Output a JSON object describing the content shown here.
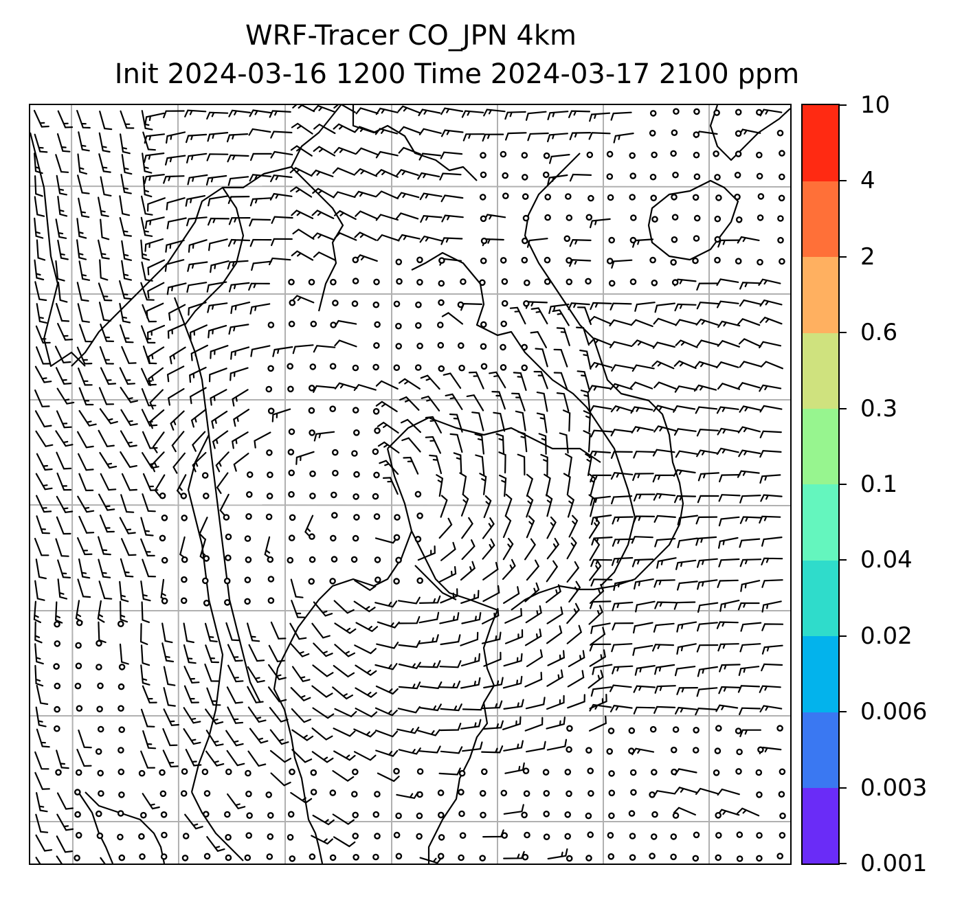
{
  "title": {
    "line1": "WRF-Tracer CO_JPN 4km",
    "line2": "Init 2024-03-16 1200 Time 2024-03-17 2100 ppm"
  },
  "map": {
    "variable": "CO",
    "units": "ppm",
    "features": [
      "coastlines",
      "country borders",
      "lat/lon gridlines",
      "wind barbs",
      "calm-wind circles"
    ],
    "gridline_color": "#b0b0b0",
    "line_color": "#000000"
  },
  "colorbar": {
    "levels": [
      "0.001",
      "0.003",
      "0.006",
      "0.02",
      "0.04",
      "0.1",
      "0.3",
      "0.6",
      "2",
      "4",
      "10"
    ],
    "colors": [
      "#6a2cf7",
      "#3a78f2",
      "#03b3ec",
      "#2fdccb",
      "#64f6be",
      "#97f58f",
      "#cfe27e",
      "#ffb060",
      "#ff7038",
      "#ff2a12"
    ]
  }
}
